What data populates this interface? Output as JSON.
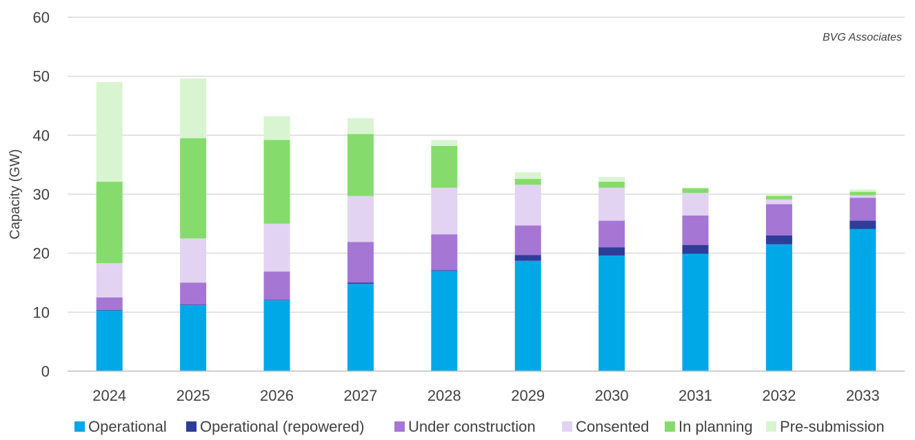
{
  "chart_data": {
    "type": "bar",
    "stacked": true,
    "title": "",
    "xlabel": "",
    "ylabel": "Capacity (GW)",
    "ylim": [
      0,
      60
    ],
    "yticks": [
      0,
      10,
      20,
      30,
      40,
      50,
      60
    ],
    "grid": true,
    "legend_position": "bottom",
    "source_note": "BVG Associates",
    "categories": [
      "2024",
      "2025",
      "2026",
      "2027",
      "2028",
      "2029",
      "2030",
      "2031",
      "2032",
      "2033"
    ],
    "series": [
      {
        "name": "Operational",
        "color": "#00a8e8",
        "values": [
          10.3,
          11.2,
          12.0,
          14.8,
          17.0,
          18.7,
          19.6,
          19.9,
          21.5,
          24.1
        ]
      },
      {
        "name": "Operational (repowered)",
        "color": "#2e3d98",
        "values": [
          0.1,
          0.1,
          0.1,
          0.2,
          0.1,
          1.0,
          1.4,
          1.5,
          1.5,
          1.4
        ]
      },
      {
        "name": "Under construction",
        "color": "#a576d4",
        "values": [
          2.1,
          3.7,
          4.8,
          6.9,
          6.1,
          5.0,
          4.5,
          5.0,
          5.3,
          3.9
        ]
      },
      {
        "name": "Consented",
        "color": "#e2d3f2",
        "values": [
          5.8,
          7.5,
          8.1,
          7.8,
          7.9,
          6.9,
          5.6,
          3.8,
          0.8,
          0.4
        ]
      },
      {
        "name": "In planning",
        "color": "#85dc6c",
        "values": [
          13.8,
          17.0,
          14.2,
          10.5,
          7.1,
          1.0,
          1.0,
          0.8,
          0.6,
          0.6
        ]
      },
      {
        "name": "Pre-submission",
        "color": "#d9f4d0",
        "values": [
          16.9,
          10.1,
          4.0,
          2.7,
          1.0,
          1.1,
          0.8,
          0.1,
          0.3,
          0.4
        ]
      }
    ]
  }
}
